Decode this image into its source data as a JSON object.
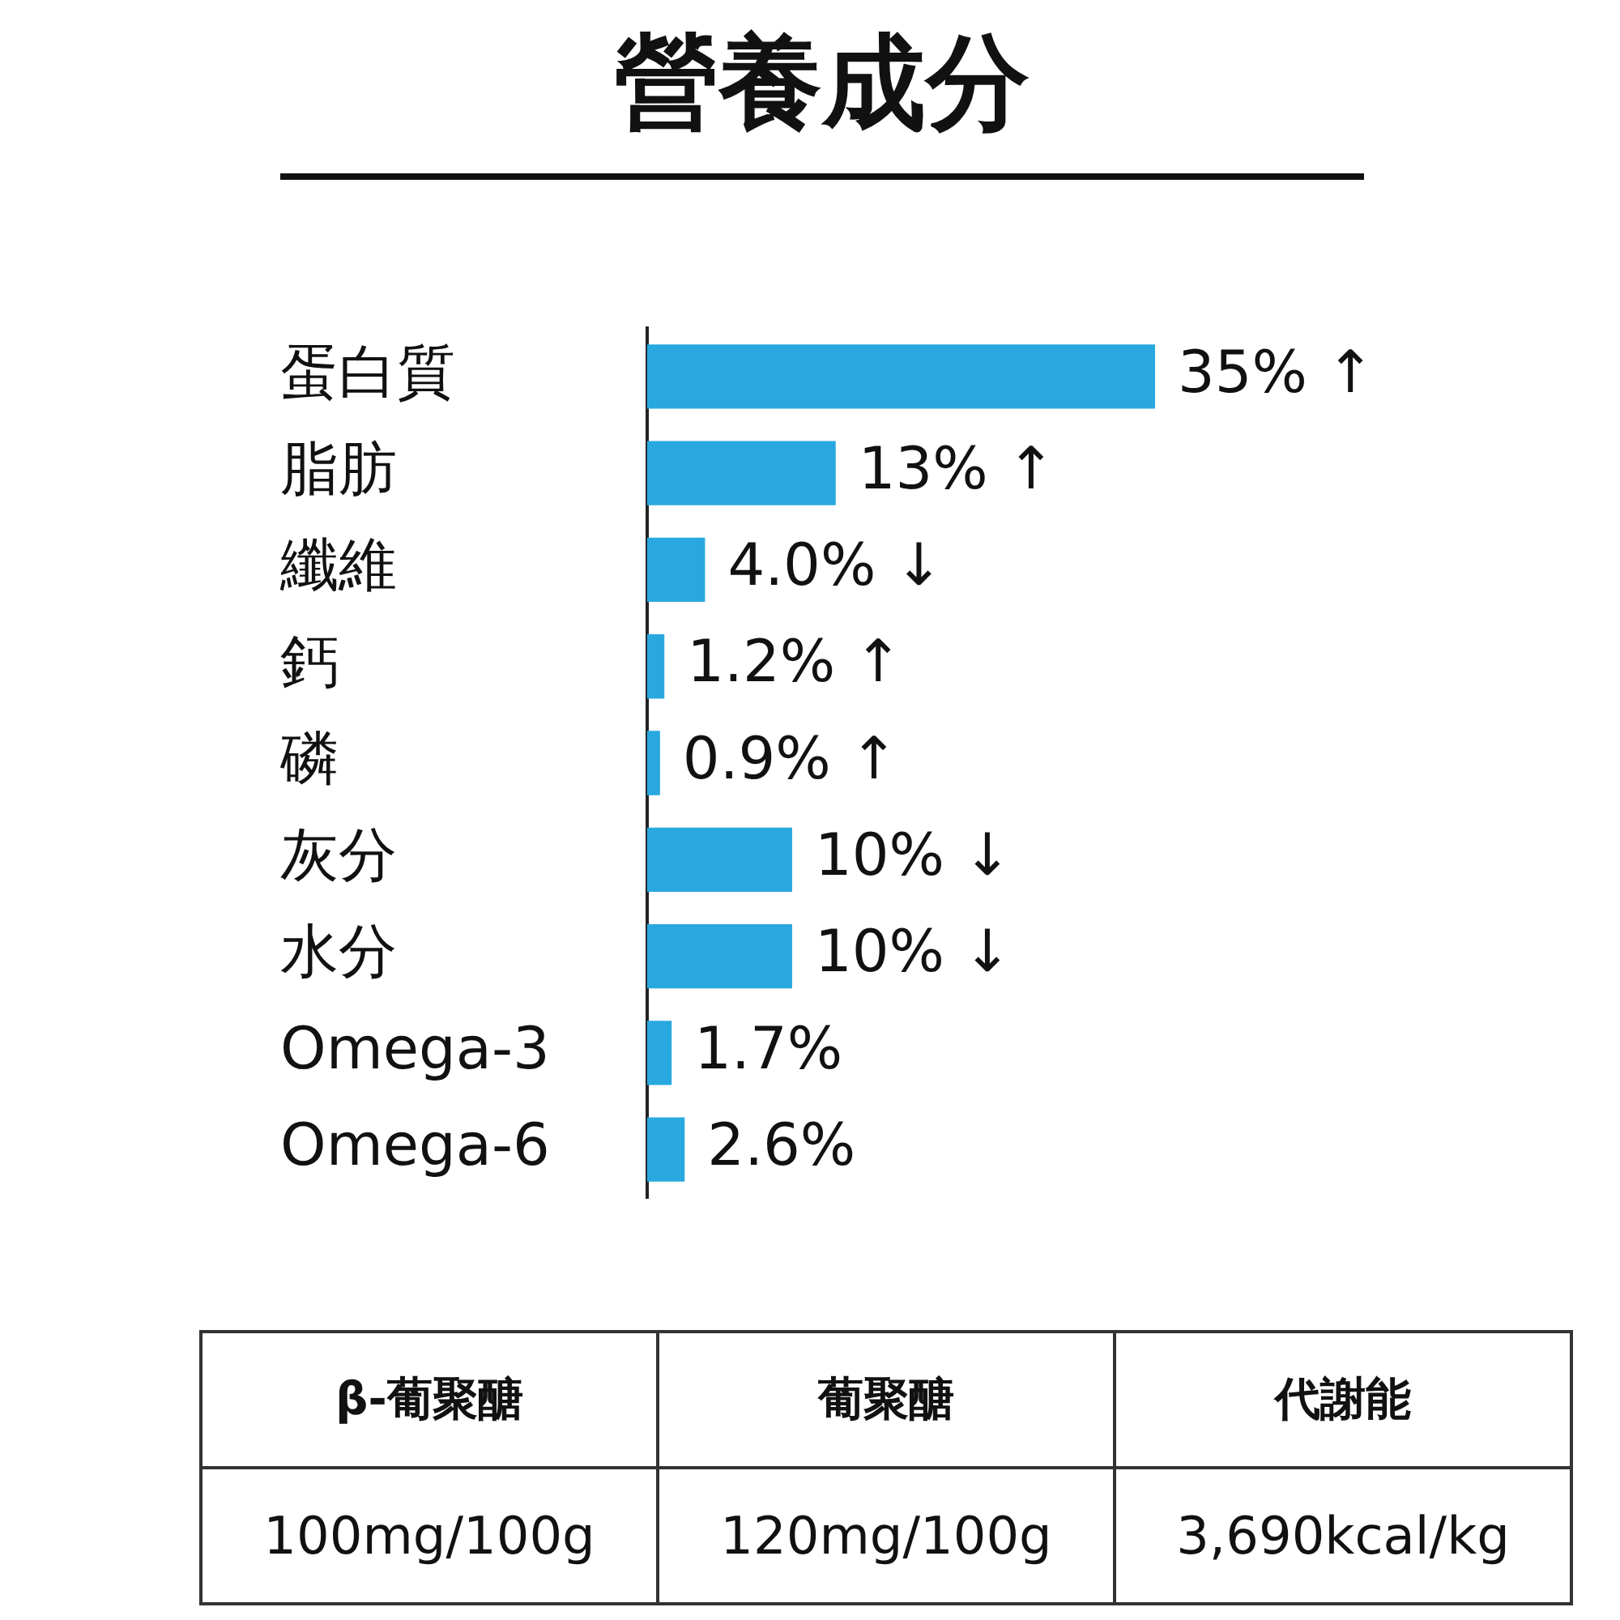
{
  "chart_data": {
    "type": "bar",
    "orientation": "horizontal",
    "title": "營養成分",
    "categories": [
      "蛋白質",
      "脂肪",
      "纖維",
      "鈣",
      "磷",
      "灰分",
      "水分",
      "Omega-3",
      "Omega-6"
    ],
    "values": [
      35,
      13,
      4.0,
      1.2,
      0.9,
      10,
      10,
      1.7,
      2.6
    ],
    "value_labels": [
      "35% ↑",
      "13% ↑",
      "4.0% ↓",
      "1.2% ↑",
      "0.9% ↑",
      "10% ↓",
      "10% ↓",
      "1.7%",
      "2.6%"
    ],
    "color": "#29a8e0",
    "grid": false,
    "legend": false,
    "tick_labels": "y",
    "annotations": [
      "β-葡聚醣",
      "葡聚醣",
      "代謝能",
      "100mg/100g",
      "120mg/100g",
      "3,690kcal/kg"
    ]
  }
}
